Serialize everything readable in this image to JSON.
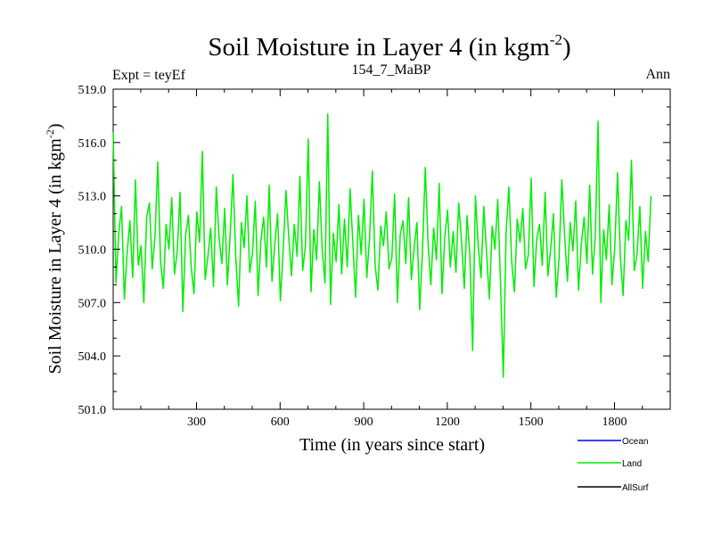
{
  "chart_data": {
    "type": "line",
    "title": "Soil Moisture in Layer 4 (in kgm",
    "title_superscript": "-2",
    "title_close": ")",
    "left_label": "Expt = teyEf",
    "center_label": "154_7_MaBP",
    "right_label": "Ann",
    "xlabel": "Time (in years since start)",
    "ylabel": "Soil Moisture in Layer 4 (in kgm",
    "ylabel_superscript": "-2",
    "ylabel_close": ")",
    "xlim": [
      1,
      2000
    ],
    "ylim": [
      501.0,
      519.0
    ],
    "xticks": [
      300,
      600,
      900,
      1200,
      1500,
      1800
    ],
    "xtick_labels": [
      "300",
      "600",
      "900",
      "1200",
      "1500",
      "1800"
    ],
    "yticks": [
      501.0,
      504.0,
      507.0,
      510.0,
      513.0,
      516.0,
      519.0
    ],
    "ytick_labels": [
      "501.0",
      "504.0",
      "507.0",
      "510.0",
      "513.0",
      "516.0",
      "519.0"
    ],
    "series": [
      {
        "name": "Land",
        "color": "#00ee00",
        "x_start": 1,
        "x_step": 10,
        "values": [
          516.6,
          508.1,
          510.9,
          512.4,
          507.2,
          509.8,
          511.6,
          508.4,
          513.9,
          509.1,
          510.2,
          507.0,
          511.8,
          512.6,
          508.9,
          510.7,
          514.9,
          509.3,
          507.8,
          511.4,
          510.0,
          512.9,
          508.6,
          509.9,
          513.2,
          506.5,
          510.8,
          511.9,
          509.0,
          507.5,
          512.1,
          510.4,
          515.5,
          508.3,
          509.6,
          511.2,
          507.9,
          513.5,
          510.6,
          509.2,
          512.3,
          508.0,
          510.9,
          514.2,
          509.5,
          506.8,
          511.5,
          510.1,
          513.0,
          508.7,
          509.8,
          512.7,
          507.4,
          510.5,
          511.8,
          509.0,
          513.6,
          508.2,
          510.3,
          512.0,
          507.1,
          509.9,
          513.3,
          510.7,
          508.5,
          511.4,
          509.6,
          514.1,
          508.8,
          510.2,
          516.2,
          507.6,
          511.1,
          509.4,
          513.8,
          510.0,
          508.1,
          517.6,
          506.9,
          510.9,
          509.3,
          512.5,
          508.6,
          511.7,
          509.0,
          513.4,
          510.4,
          507.3,
          511.9,
          509.7,
          512.8,
          508.4,
          510.6,
          514.4,
          509.1,
          507.7,
          511.3,
          510.2,
          512.1,
          508.9,
          509.5,
          513.1,
          507.0,
          510.8,
          511.6,
          509.2,
          512.9,
          508.3,
          510.1,
          511.5,
          506.6,
          509.9,
          514.6,
          510.3,
          508.0,
          511.2,
          509.4,
          513.7,
          507.5,
          510.7,
          512.2,
          509.0,
          511.0,
          508.7,
          512.6,
          510.5,
          507.8,
          511.9,
          509.6,
          504.3,
          513.0,
          510.2,
          508.4,
          512.4,
          509.8,
          507.2,
          511.3,
          510.0,
          512.8,
          508.1,
          502.8,
          510.9,
          513.5,
          509.3,
          507.6,
          511.7,
          510.4,
          512.3,
          508.9,
          509.7,
          514.0,
          507.9,
          510.6,
          511.4,
          509.1,
          513.2,
          508.5,
          510.0,
          512.0,
          507.3,
          509.5,
          513.9,
          510.8,
          508.2,
          511.5,
          509.9,
          512.7,
          507.7,
          510.3,
          511.8,
          509.2,
          513.6,
          508.6,
          510.7,
          517.2,
          507.0,
          511.1,
          509.4,
          512.5,
          508.0,
          510.1,
          514.3,
          509.6,
          507.4,
          511.6,
          510.5,
          515.0,
          508.8,
          509.7,
          512.4,
          507.8,
          511.0,
          509.3,
          513.0
        ]
      }
    ],
    "legend": [
      {
        "name": "Ocean",
        "color": "#0000ff"
      },
      {
        "name": "Land",
        "color": "#00ee00"
      },
      {
        "name": "AllSurf",
        "color": "#000000"
      }
    ],
    "legend_position": "bottom-right, below plot"
  }
}
